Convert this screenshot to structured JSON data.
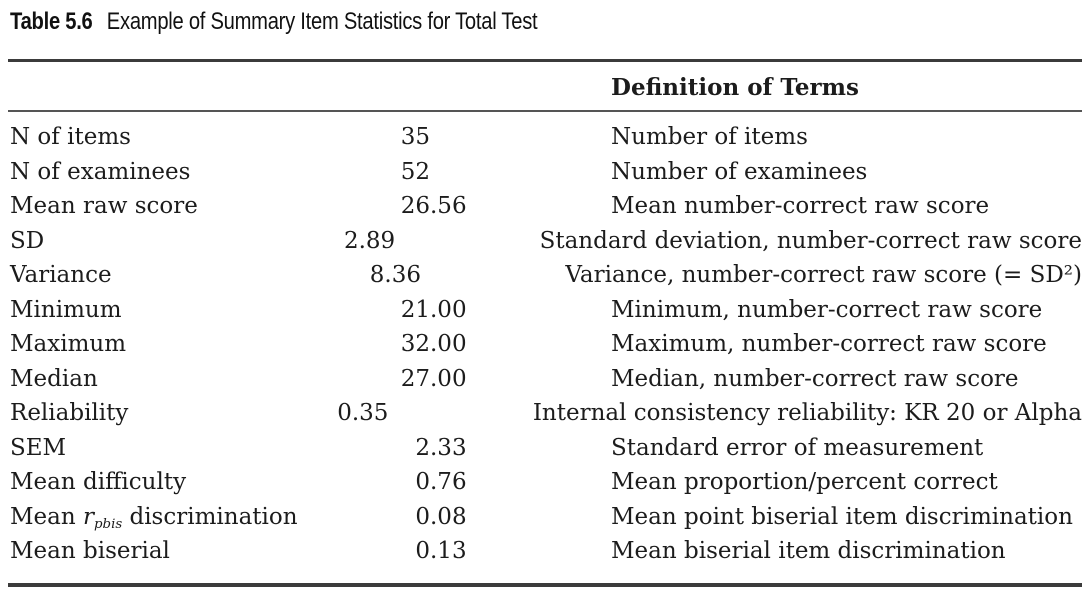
{
  "caption": {
    "label": "Table 5.6",
    "title": "Example of Summary Item Statistics for Total Test"
  },
  "table": {
    "definition_header": "Definition of Terms",
    "rows": [
      {
        "label": [
          {
            "t": "N of items"
          }
        ],
        "value": "35",
        "definition": "Number of items"
      },
      {
        "label": [
          {
            "t": "N of examinees"
          }
        ],
        "value": "52",
        "definition": "Number of examinees"
      },
      {
        "label": [
          {
            "t": "Mean raw score"
          }
        ],
        "value": "26.56",
        "definition": "Mean number-correct raw score"
      },
      {
        "label": [
          {
            "t": "SD"
          }
        ],
        "value": "2.89",
        "definition": "Standard deviation, number-correct raw score"
      },
      {
        "label": [
          {
            "t": "Variance"
          }
        ],
        "value": "8.36",
        "definition": "Variance, number-correct raw score (= SD²)"
      },
      {
        "label": [
          {
            "t": "Minimum"
          }
        ],
        "value": "21.00",
        "definition": "Minimum, number-correct raw score"
      },
      {
        "label": [
          {
            "t": "Maximum"
          }
        ],
        "value": "32.00",
        "definition": "Maximum, number-correct raw score"
      },
      {
        "label": [
          {
            "t": "Median"
          }
        ],
        "value": "27.00",
        "definition": "Median, number-correct raw score"
      },
      {
        "label": [
          {
            "t": "Reliability"
          }
        ],
        "value": "0.35",
        "definition": "Internal consistency reliability: KR 20 or Alpha"
      },
      {
        "label": [
          {
            "t": "SEM"
          }
        ],
        "value": "2.33",
        "definition": "Standard error of measurement"
      },
      {
        "label": [
          {
            "t": "Mean difficulty"
          }
        ],
        "value": "0.76",
        "definition": "Mean proportion/percent correct"
      },
      {
        "label": [
          {
            "t": "Mean "
          },
          {
            "t": "r",
            "italic": true
          },
          {
            "t": "pbis",
            "italic": true,
            "subscript": true
          },
          {
            "t": " discrimination"
          }
        ],
        "value": "0.08",
        "definition": "Mean point biserial item discrimination"
      },
      {
        "label": [
          {
            "t": "Mean biserial"
          }
        ],
        "value": "0.13",
        "definition": "Mean biserial item discrimination"
      }
    ]
  },
  "colors": {
    "background": "#ffffff",
    "text": "#1c1c1c",
    "rule_dark": "#3b3b3b",
    "rule_light": "#555555"
  }
}
